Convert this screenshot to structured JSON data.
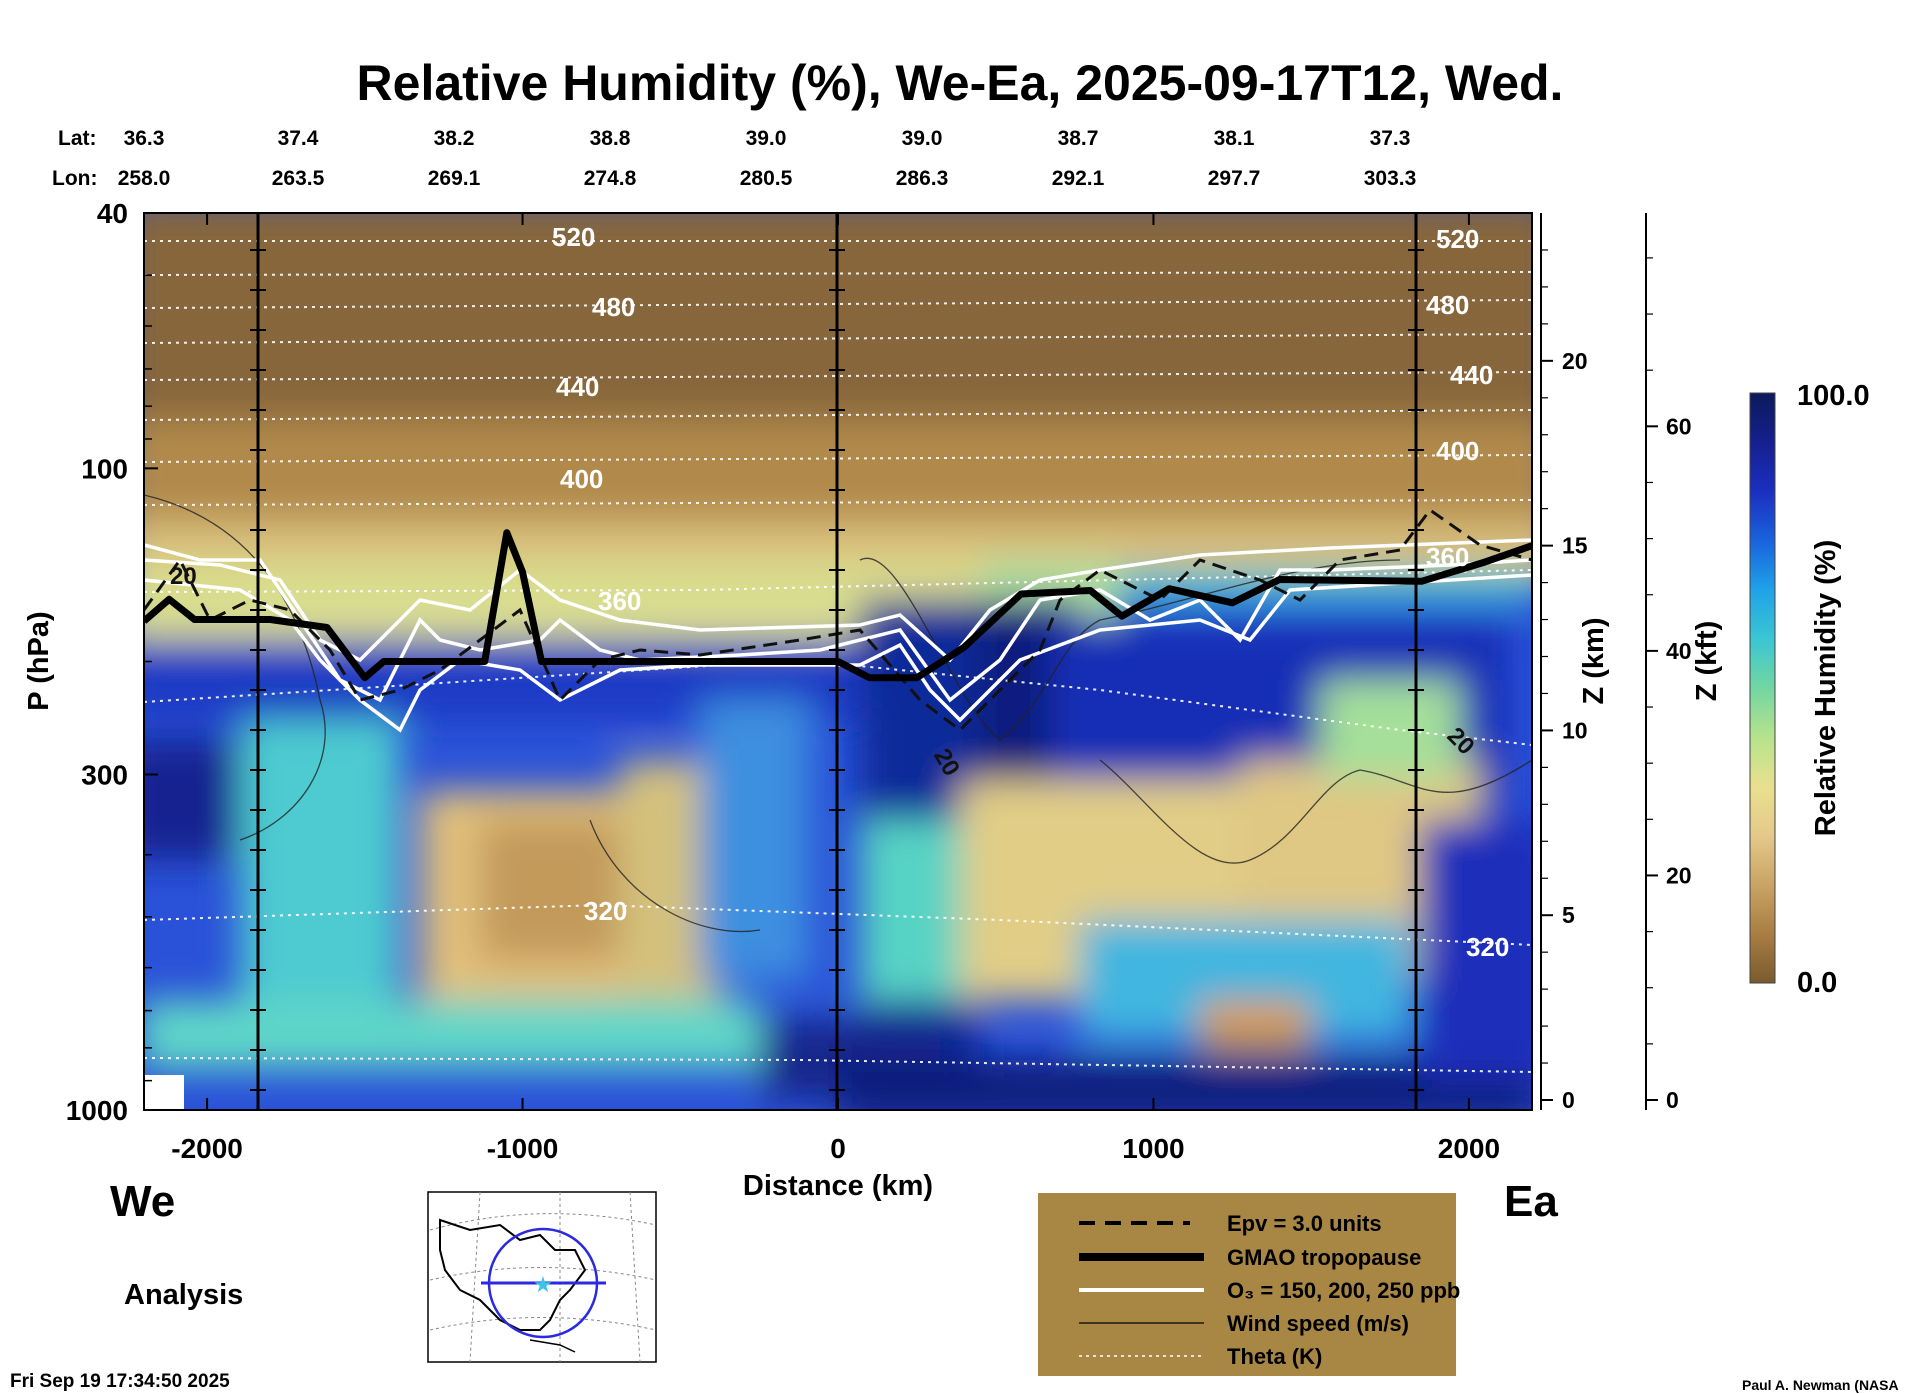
{
  "chart_data": {
    "type": "heatmap",
    "title": "Relative Humidity (%), We-Ea, 2025-09-17T12, Wed.",
    "xlabel": "Distance (km)",
    "ylabel": "P (hPa)",
    "xlim": [
      -2200,
      2200
    ],
    "ylim": [
      1000,
      40
    ],
    "y_scale": "log",
    "x_ticks": [
      "-2000",
      "-1000",
      "0",
      "1000",
      "2000"
    ],
    "y_ticks": [
      "40",
      "100",
      "300",
      "1000"
    ],
    "z_km_label": "Z (km)",
    "z_km_ticks": [
      "0",
      "5",
      "10",
      "15",
      "20"
    ],
    "z_kft_label": "Z (kft)",
    "z_kft_ticks": [
      "0",
      "20",
      "40",
      "60"
    ],
    "lat_label": "Lat:",
    "lon_label": "Lon:",
    "lat": [
      "36.3",
      "37.4",
      "38.2",
      "38.8",
      "39.0",
      "39.0",
      "38.7",
      "38.1",
      "37.3"
    ],
    "lon": [
      "258.0",
      "263.5",
      "269.1",
      "274.8",
      "280.5",
      "286.3",
      "292.1",
      "297.7",
      "303.3"
    ],
    "left_label": "We",
    "right_label": "Ea",
    "analysis_label": "Analysis",
    "colorbar": {
      "label": "Relative Humidity (%)",
      "min": "0.0",
      "max": "100.0",
      "colors": [
        "#7a5a2e",
        "#a87e43",
        "#c9a464",
        "#e5c98a",
        "#e8e08e",
        "#b6e38c",
        "#72d6a2",
        "#3ac6d3",
        "#1fa2e8",
        "#1a62dc",
        "#1b2fc0",
        "#15208e",
        "#0c1a5c"
      ]
    },
    "theta_labels": [
      "520",
      "480",
      "440",
      "400",
      "360",
      "320"
    ],
    "wind_labels": [
      "20",
      "20",
      "20"
    ],
    "tropopause": [
      {
        "x": -2200,
        "p": 173
      },
      {
        "x": -2120,
        "p": 160
      },
      {
        "x": -2040,
        "p": 172
      },
      {
        "x": -1800,
        "p": 172
      },
      {
        "x": -1620,
        "p": 177
      },
      {
        "x": -1500,
        "p": 212
      },
      {
        "x": -1440,
        "p": 200
      },
      {
        "x": -1300,
        "p": 200
      },
      {
        "x": -1120,
        "p": 200
      },
      {
        "x": -1050,
        "p": 126
      },
      {
        "x": -1000,
        "p": 145
      },
      {
        "x": -940,
        "p": 200
      },
      {
        "x": -600,
        "p": 200
      },
      {
        "x": 0,
        "p": 200
      },
      {
        "x": 100,
        "p": 212
      },
      {
        "x": 250,
        "p": 212
      },
      {
        "x": 400,
        "p": 190
      },
      {
        "x": 580,
        "p": 157
      },
      {
        "x": 800,
        "p": 155
      },
      {
        "x": 900,
        "p": 170
      },
      {
        "x": 1050,
        "p": 154
      },
      {
        "x": 1250,
        "p": 162
      },
      {
        "x": 1400,
        "p": 149
      },
      {
        "x": 1850,
        "p": 150
      },
      {
        "x": 2050,
        "p": 140
      },
      {
        "x": 2200,
        "p": 132
      }
    ],
    "legend": [
      {
        "style": "dashed",
        "label": "Epv = 3.0 units"
      },
      {
        "style": "thick",
        "label": "GMAO tropopause"
      },
      {
        "style": "white",
        "label": "O₃ = 150, 200, 250 ppb"
      },
      {
        "style": "thin",
        "label": "Wind speed (m/s)"
      },
      {
        "style": "dotted",
        "label": "Theta (K)"
      }
    ],
    "timestamp": "Fri Sep 19 17:34:50 2025",
    "credit": "Paul A. Newman (NASA"
  }
}
